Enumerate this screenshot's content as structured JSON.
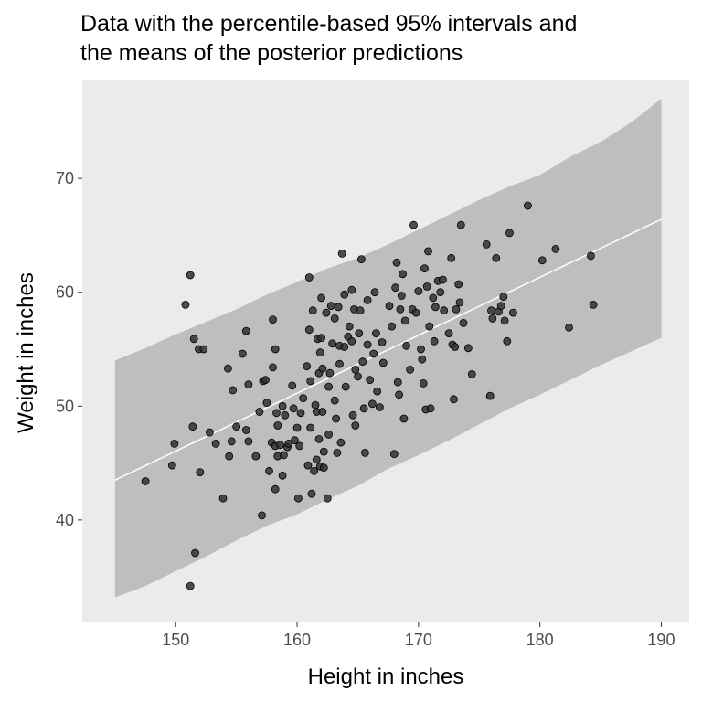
{
  "chart_data": {
    "type": "scatter",
    "title_lines": [
      "Data with the percentile-based 95% intervals and",
      "the means of the posterior predictions"
    ],
    "xlabel": "Height in inches",
    "ylabel": "Weight in inches",
    "xlim": [
      142.3,
      192.3
    ],
    "ylim": [
      31.0,
      78.6
    ],
    "xticks": [
      150,
      160,
      170,
      180,
      190
    ],
    "yticks": [
      40,
      50,
      60,
      70
    ],
    "grid": false,
    "legend": "none",
    "colors": {
      "panel": "#ebebeb",
      "band": "#bebebe",
      "mean_line": "#ffffff",
      "points": "#333333"
    },
    "interval_band": {
      "x": [
        145,
        147.5,
        150,
        152.5,
        155,
        157.5,
        160,
        162.5,
        165,
        167.5,
        170,
        172.5,
        175,
        177.5,
        180,
        182.5,
        185,
        187.5,
        190
      ],
      "lower": [
        33.2,
        34.2,
        35.5,
        36.8,
        38.2,
        39.5,
        40.5,
        41.8,
        43.0,
        44.5,
        45.7,
        47.0,
        48.4,
        49.8,
        51.0,
        52.3,
        53.6,
        54.8,
        56.0
      ],
      "upper": [
        54.0,
        55.1,
        56.3,
        57.4,
        58.5,
        59.8,
        60.9,
        62.1,
        63.0,
        64.2,
        65.5,
        66.8,
        68.1,
        69.3,
        70.3,
        71.9,
        73.2,
        74.9,
        77.0
      ]
    },
    "mean_line": {
      "x": [
        145,
        190
      ],
      "y": [
        43.5,
        66.4
      ]
    },
    "points": [
      [
        147.5,
        43.4
      ],
      [
        149.7,
        44.8
      ],
      [
        149.9,
        46.7
      ],
      [
        150.8,
        58.9
      ],
      [
        151.2,
        61.5
      ],
      [
        151.2,
        34.2
      ],
      [
        151.4,
        48.2
      ],
      [
        151.5,
        55.9
      ],
      [
        151.6,
        37.1
      ],
      [
        151.9,
        55.0
      ],
      [
        152.0,
        44.2
      ],
      [
        152.3,
        55.0
      ],
      [
        152.8,
        47.7
      ],
      [
        153.3,
        46.7
      ],
      [
        153.9,
        41.9
      ],
      [
        154.3,
        53.3
      ],
      [
        154.4,
        45.6
      ],
      [
        154.6,
        46.9
      ],
      [
        154.7,
        51.4
      ],
      [
        155.0,
        48.2
      ],
      [
        155.5,
        54.6
      ],
      [
        155.8,
        56.6
      ],
      [
        155.8,
        47.9
      ],
      [
        156.0,
        46.9
      ],
      [
        156.0,
        51.9
      ],
      [
        156.6,
        45.6
      ],
      [
        156.9,
        49.5
      ],
      [
        157.1,
        40.4
      ],
      [
        157.2,
        52.2
      ],
      [
        157.4,
        52.3
      ],
      [
        157.5,
        50.3
      ],
      [
        157.7,
        44.3
      ],
      [
        157.9,
        46.8
      ],
      [
        158.0,
        57.6
      ],
      [
        158.0,
        53.4
      ],
      [
        158.2,
        55.0
      ],
      [
        158.2,
        46.5
      ],
      [
        158.2,
        42.7
      ],
      [
        158.3,
        49.4
      ],
      [
        158.4,
        48.3
      ],
      [
        158.4,
        45.6
      ],
      [
        158.6,
        46.6
      ],
      [
        158.8,
        50.0
      ],
      [
        158.8,
        43.9
      ],
      [
        158.9,
        45.7
      ],
      [
        159.0,
        49.2
      ],
      [
        159.2,
        46.4
      ],
      [
        159.3,
        46.7
      ],
      [
        159.6,
        51.8
      ],
      [
        159.7,
        49.8
      ],
      [
        159.8,
        47.0
      ],
      [
        160.0,
        48.1
      ],
      [
        160.1,
        41.9
      ],
      [
        160.2,
        46.5
      ],
      [
        160.3,
        49.4
      ],
      [
        160.5,
        50.7
      ],
      [
        160.8,
        53.5
      ],
      [
        160.9,
        44.8
      ],
      [
        161.0,
        61.3
      ],
      [
        161.0,
        56.7
      ],
      [
        161.1,
        52.2
      ],
      [
        161.1,
        48.1
      ],
      [
        161.2,
        42.3
      ],
      [
        161.3,
        58.4
      ],
      [
        161.4,
        44.3
      ],
      [
        161.5,
        50.1
      ],
      [
        161.6,
        45.3
      ],
      [
        161.6,
        49.5
      ],
      [
        161.7,
        55.9
      ],
      [
        161.8,
        52.9
      ],
      [
        161.8,
        47.1
      ],
      [
        161.9,
        54.7
      ],
      [
        161.9,
        44.7
      ],
      [
        162.0,
        59.5
      ],
      [
        162.0,
        56.0
      ],
      [
        162.1,
        53.3
      ],
      [
        162.1,
        49.5
      ],
      [
        162.2,
        46.0
      ],
      [
        162.2,
        44.6
      ],
      [
        162.4,
        58.2
      ],
      [
        162.5,
        41.9
      ],
      [
        162.6,
        51.7
      ],
      [
        162.6,
        47.5
      ],
      [
        162.7,
        52.9
      ],
      [
        162.8,
        58.8
      ],
      [
        162.9,
        55.5
      ],
      [
        163.1,
        57.7
      ],
      [
        163.1,
        50.5
      ],
      [
        163.2,
        48.9
      ],
      [
        163.3,
        45.9
      ],
      [
        163.4,
        58.7
      ],
      [
        163.5,
        53.7
      ],
      [
        163.5,
        55.3
      ],
      [
        163.6,
        46.8
      ],
      [
        163.7,
        63.4
      ],
      [
        163.9,
        59.8
      ],
      [
        163.9,
        55.2
      ],
      [
        164.0,
        51.7
      ],
      [
        164.2,
        56.1
      ],
      [
        164.3,
        57.0
      ],
      [
        164.5,
        60.2
      ],
      [
        164.5,
        55.7
      ],
      [
        164.6,
        49.2
      ],
      [
        164.7,
        58.5
      ],
      [
        164.8,
        53.2
      ],
      [
        164.8,
        48.3
      ],
      [
        165.0,
        52.6
      ],
      [
        165.1,
        56.4
      ],
      [
        165.2,
        58.4
      ],
      [
        165.3,
        62.9
      ],
      [
        165.4,
        53.9
      ],
      [
        165.5,
        49.8
      ],
      [
        165.6,
        45.9
      ],
      [
        165.8,
        55.4
      ],
      [
        165.8,
        59.3
      ],
      [
        166.0,
        52.3
      ],
      [
        166.2,
        50.2
      ],
      [
        166.3,
        54.6
      ],
      [
        166.4,
        60.0
      ],
      [
        166.5,
        56.4
      ],
      [
        166.6,
        51.3
      ],
      [
        166.8,
        49.9
      ],
      [
        167.0,
        55.6
      ],
      [
        167.1,
        53.8
      ],
      [
        167.6,
        58.8
      ],
      [
        167.8,
        57.0
      ],
      [
        168.0,
        45.8
      ],
      [
        168.1,
        60.4
      ],
      [
        168.2,
        62.6
      ],
      [
        168.3,
        52.1
      ],
      [
        168.4,
        51.0
      ],
      [
        168.5,
        58.5
      ],
      [
        168.6,
        59.7
      ],
      [
        168.7,
        61.6
      ],
      [
        168.8,
        48.9
      ],
      [
        168.9,
        57.5
      ],
      [
        169.0,
        55.3
      ],
      [
        169.3,
        53.2
      ],
      [
        169.5,
        58.5
      ],
      [
        169.6,
        65.9
      ],
      [
        169.8,
        58.2
      ],
      [
        170.0,
        60.1
      ],
      [
        170.2,
        55.0
      ],
      [
        170.3,
        54.1
      ],
      [
        170.4,
        52.0
      ],
      [
        170.5,
        62.1
      ],
      [
        170.6,
        49.7
      ],
      [
        170.7,
        60.5
      ],
      [
        170.8,
        63.6
      ],
      [
        170.9,
        57.0
      ],
      [
        171.0,
        49.8
      ],
      [
        171.2,
        59.5
      ],
      [
        171.3,
        55.7
      ],
      [
        171.4,
        58.7
      ],
      [
        171.6,
        61.0
      ],
      [
        171.8,
        60.0
      ],
      [
        172.0,
        61.1
      ],
      [
        172.1,
        58.4
      ],
      [
        172.5,
        56.4
      ],
      [
        172.7,
        63.0
      ],
      [
        172.8,
        55.4
      ],
      [
        172.9,
        50.6
      ],
      [
        173.0,
        55.2
      ],
      [
        173.1,
        58.5
      ],
      [
        173.3,
        60.7
      ],
      [
        173.4,
        59.1
      ],
      [
        173.5,
        65.9
      ],
      [
        173.7,
        57.3
      ],
      [
        174.1,
        55.1
      ],
      [
        174.4,
        52.8
      ],
      [
        175.6,
        64.2
      ],
      [
        175.9,
        50.9
      ],
      [
        176.0,
        58.4
      ],
      [
        176.1,
        57.7
      ],
      [
        176.4,
        63.0
      ],
      [
        176.6,
        58.3
      ],
      [
        176.8,
        58.8
      ],
      [
        177.0,
        59.6
      ],
      [
        177.1,
        57.5
      ],
      [
        177.3,
        55.7
      ],
      [
        177.5,
        65.2
      ],
      [
        177.8,
        58.2
      ],
      [
        179.0,
        67.6
      ],
      [
        180.2,
        62.8
      ],
      [
        181.3,
        63.8
      ],
      [
        182.4,
        56.9
      ],
      [
        184.2,
        63.2
      ],
      [
        184.4,
        58.9
      ]
    ]
  }
}
